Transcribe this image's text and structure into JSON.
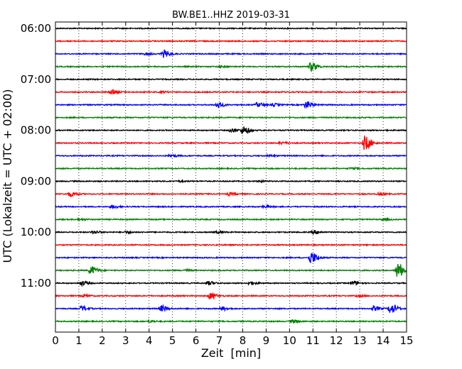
{
  "chart_data": {
    "type": "line",
    "title": "BW.BE1..HHZ 2019-03-31",
    "xlabel": "Zeit  [min]",
    "ylabel": "UTC (Lokalzeit = UTC + 02:00)",
    "xlim": [
      0,
      15
    ],
    "x_ticks": [
      "0",
      "1",
      "2",
      "3",
      "4",
      "5",
      "6",
      "7",
      "8",
      "9",
      "10",
      "11",
      "12",
      "13",
      "14",
      "15"
    ],
    "y_ticks": [
      "06:00",
      "07:00",
      "08:00",
      "09:00",
      "10:00",
      "11:00"
    ],
    "grid": "vertical-dotted",
    "color_cycle": [
      "#000000",
      "#ff0000",
      "#0000ff",
      "#008000"
    ],
    "traces": [
      {
        "start": "06:00",
        "events": []
      },
      {
        "start": "06:15",
        "events": []
      },
      {
        "start": "06:30",
        "events": [
          {
            "t": 4.6,
            "amp": 0.6
          },
          {
            "t": 3.8,
            "amp": 0.12
          }
        ]
      },
      {
        "start": "06:45",
        "events": [
          {
            "t": 10.9,
            "amp": 0.75
          },
          {
            "t": 7.0,
            "amp": 0.1
          }
        ]
      },
      {
        "start": "07:00",
        "events": []
      },
      {
        "start": "07:15",
        "events": [
          {
            "t": 2.4,
            "amp": 0.35
          },
          {
            "t": 4.5,
            "amp": 0.1
          }
        ]
      },
      {
        "start": "07:30",
        "events": [
          {
            "t": 6.9,
            "amp": 0.45
          },
          {
            "t": 8.6,
            "amp": 0.35
          },
          {
            "t": 9.3,
            "amp": 0.2
          },
          {
            "t": 10.7,
            "amp": 0.6
          }
        ]
      },
      {
        "start": "07:45",
        "events": []
      },
      {
        "start": "08:00",
        "events": [
          {
            "t": 8.0,
            "amp": 0.65
          },
          {
            "t": 7.5,
            "amp": 0.3
          }
        ]
      },
      {
        "start": "08:15",
        "events": [
          {
            "t": 13.2,
            "amp": 1.25
          },
          {
            "t": 9.6,
            "amp": 0.2
          }
        ]
      },
      {
        "start": "08:30",
        "events": [
          {
            "t": 4.9,
            "amp": 0.2
          },
          {
            "t": 9.1,
            "amp": 0.12
          }
        ]
      },
      {
        "start": "08:45",
        "events": [
          {
            "t": 12.6,
            "amp": 0.12
          }
        ]
      },
      {
        "start": "09:00",
        "events": [
          {
            "t": 5.3,
            "amp": 0.1
          },
          {
            "t": 8.7,
            "amp": 0.1
          }
        ]
      },
      {
        "start": "09:15",
        "events": [
          {
            "t": 0.6,
            "amp": 0.4
          },
          {
            "t": 7.4,
            "amp": 0.2
          },
          {
            "t": 13.8,
            "amp": 0.15
          }
        ]
      },
      {
        "start": "09:30",
        "events": [
          {
            "t": 2.4,
            "amp": 0.25
          },
          {
            "t": 8.9,
            "amp": 0.2
          }
        ]
      },
      {
        "start": "09:45",
        "events": [
          {
            "t": 1.0,
            "amp": 0.12
          },
          {
            "t": 14.0,
            "amp": 0.12
          }
        ]
      },
      {
        "start": "10:00",
        "events": [
          {
            "t": 1.6,
            "amp": 0.25
          },
          {
            "t": 3.0,
            "amp": 0.15
          },
          {
            "t": 6.9,
            "amp": 0.15
          },
          {
            "t": 11.0,
            "amp": 0.3
          }
        ]
      },
      {
        "start": "10:15",
        "events": []
      },
      {
        "start": "10:30",
        "events": [
          {
            "t": 10.9,
            "amp": 1.0
          }
        ]
      },
      {
        "start": "10:45",
        "events": [
          {
            "t": 1.5,
            "amp": 0.7
          },
          {
            "t": 14.6,
            "amp": 1.3
          },
          {
            "t": 5.5,
            "amp": 0.15
          }
        ]
      },
      {
        "start": "11:00",
        "events": [
          {
            "t": 1.1,
            "amp": 0.35
          },
          {
            "t": 6.5,
            "amp": 0.3
          },
          {
            "t": 8.3,
            "amp": 0.25
          },
          {
            "t": 12.7,
            "amp": 0.3
          }
        ]
      },
      {
        "start": "11:15",
        "events": [
          {
            "t": 6.6,
            "amp": 0.55
          },
          {
            "t": 1.2,
            "amp": 0.15
          },
          {
            "t": 12.9,
            "amp": 0.15
          }
        ]
      },
      {
        "start": "11:30",
        "events": [
          {
            "t": 1.1,
            "amp": 0.45
          },
          {
            "t": 4.5,
            "amp": 0.5
          },
          {
            "t": 7.1,
            "amp": 0.3
          },
          {
            "t": 13.6,
            "amp": 0.35
          },
          {
            "t": 14.3,
            "amp": 0.85
          }
        ]
      },
      {
        "start": "11:45",
        "events": [
          {
            "t": 4.0,
            "amp": 0.15
          },
          {
            "t": 10.1,
            "amp": 0.3
          }
        ]
      }
    ]
  }
}
